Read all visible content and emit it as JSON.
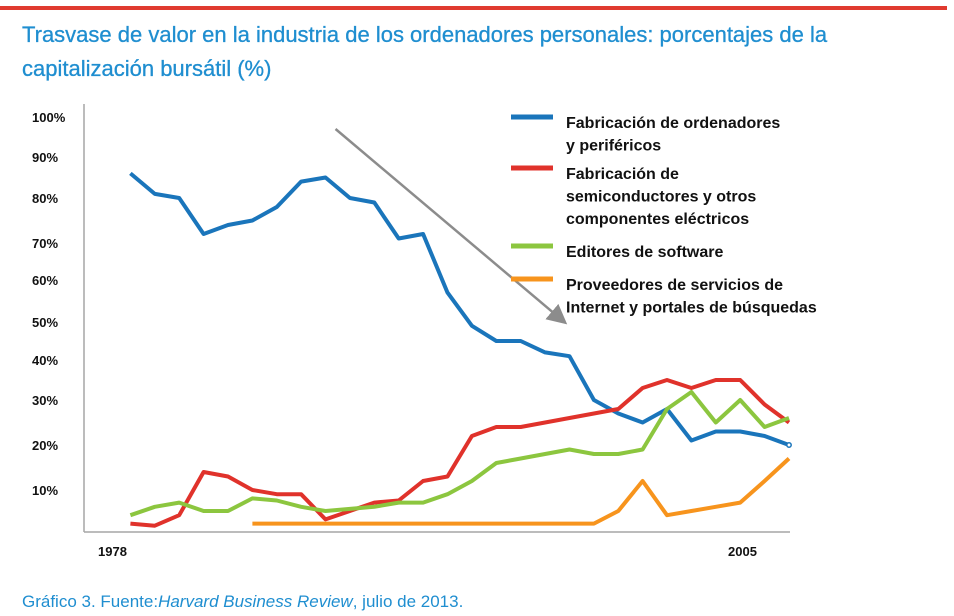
{
  "chart_data": {
    "type": "line",
    "title": "Trasvase de valor en la industria de los ordenadores personales: porcentajes de la capitalización bursátil (%)",
    "xlabel": "",
    "ylabel": "",
    "x_tick_labels": [
      "1978",
      "2005"
    ],
    "y_tick_labels": [
      "100%",
      "90%",
      "80%",
      "70%",
      "60%",
      "50%",
      "40%",
      "30%",
      "20%",
      "10%"
    ],
    "x": [
      1978,
      1979,
      1980,
      1981,
      1982,
      1983,
      1984,
      1985,
      1986,
      1987,
      1988,
      1989,
      1990,
      1991,
      1992,
      1993,
      1994,
      1995,
      1996,
      1997,
      1998,
      1999,
      2000,
      2001,
      2002,
      2003,
      2004,
      2005,
      2006
    ],
    "ylim": [
      0,
      100
    ],
    "series": [
      {
        "name": "Fabricación de ordenadores y periféricos",
        "color": "#1a75bb",
        "values": [
          null,
          86,
          81,
          80,
          72,
          74,
          75,
          78,
          84,
          85,
          80,
          79,
          71,
          72,
          57,
          49,
          45,
          45,
          42,
          41,
          30,
          27,
          25,
          28,
          21,
          23,
          23,
          22,
          20
        ]
      },
      {
        "name": "Fabricación de semiconductores y otros componentes eléctricos",
        "color": "#e0322b",
        "values": [
          null,
          2,
          1.5,
          4,
          14,
          13,
          10,
          9,
          9,
          3,
          5,
          7,
          7.5,
          12,
          13,
          22,
          24,
          24,
          25,
          26,
          27,
          28,
          33,
          35,
          33,
          35,
          35,
          29,
          25
        ]
      },
      {
        "name": "Editores de software",
        "color": "#8cc63f",
        "values": [
          null,
          4,
          6,
          7,
          5,
          5,
          8,
          7.5,
          6,
          5,
          5.5,
          6,
          7,
          7,
          9,
          12,
          16,
          17,
          18,
          19,
          18,
          18,
          19,
          28,
          32,
          25,
          30,
          24,
          26
        ]
      },
      {
        "name": "Proveedores de servicios de Internet y portales de búsquedas",
        "color": "#f7941d",
        "values": [
          null,
          null,
          null,
          null,
          null,
          null,
          2,
          2,
          2,
          2,
          2,
          2,
          2,
          2,
          2,
          2,
          2,
          2,
          2,
          2,
          2,
          5,
          12,
          4,
          5,
          6,
          7,
          12,
          17
        ]
      }
    ],
    "legend_position": "top-right",
    "legend": [
      {
        "lines": [
          "Fabricación de ordenadores",
          "y periféricos"
        ],
        "color": "#1a75bb"
      },
      {
        "lines": [
          "Fabricación de",
          "semiconductores y otros",
          "componentes eléctricos"
        ],
        "color": "#e0322b"
      },
      {
        "lines": [
          "Editores de software"
        ],
        "color": "#8cc63f"
      },
      {
        "lines": [
          "Proveedores de servicios de",
          "Internet y portales de búsquedas"
        ],
        "color": "#f7941d"
      }
    ],
    "annotations": [
      {
        "type": "arrow",
        "color": "#8c8c8c",
        "from": {
          "x": 1987,
          "y": 99
        },
        "to": {
          "x": 1997,
          "y": 52
        }
      }
    ],
    "grid": false
  },
  "caption": {
    "prefix": "Gráfico 3. Fuente:",
    "source": "Harvard Business Review",
    "suffix": ", julio de 2013."
  },
  "colors": {
    "accent": "#1f8ed0",
    "rule": "#e03a2f",
    "axis": "#a6a6a6"
  }
}
